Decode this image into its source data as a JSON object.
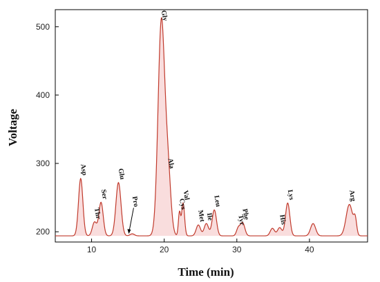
{
  "chart_data": {
    "type": "line",
    "xlabel": "Time (min)",
    "ylabel": "Voltage",
    "xlim": [
      5,
      48
    ],
    "ylim": [
      185,
      525
    ],
    "x_ticks": [
      10,
      20,
      30,
      40
    ],
    "y_ticks": [
      200,
      300,
      400,
      500
    ],
    "grid": false,
    "line_color": "#c0392b",
    "fill_color": "#f5c6c6",
    "baseline": 194,
    "peaks": [
      {
        "name": "Asp",
        "time": 8.5,
        "height": 278,
        "width": 0.3
      },
      {
        "name": "Thr",
        "time": 10.4,
        "height": 214,
        "width": 0.3
      },
      {
        "name": "Ser",
        "time": 11.3,
        "height": 243,
        "width": 0.3
      },
      {
        "name": "Glu",
        "time": 13.7,
        "height": 272,
        "width": 0.35
      },
      {
        "name": "Pro",
        "time": 15.6,
        "height": 197,
        "width": 0.3
      },
      {
        "name": "Gly",
        "time": 19.6,
        "height": 505,
        "width": 0.45
      },
      {
        "name": "Ala",
        "time": 20.5,
        "height": 288,
        "width": 0.4
      },
      {
        "name": "Cys",
        "time": 22.1,
        "height": 228,
        "width": 0.15
      },
      {
        "name": "Val",
        "time": 22.6,
        "height": 242,
        "width": 0.2
      },
      {
        "name": "Met",
        "time": 24.7,
        "height": 210,
        "width": 0.3
      },
      {
        "name": "Ile",
        "time": 25.8,
        "height": 212,
        "width": 0.3
      },
      {
        "name": "Leu",
        "time": 26.9,
        "height": 232,
        "width": 0.3
      },
      {
        "name": "Tyr",
        "time": 30.2,
        "height": 205,
        "width": 0.25
      },
      {
        "name": "Phe",
        "time": 30.8,
        "height": 213,
        "width": 0.3
      },
      {
        "name": "His",
        "time": 35.9,
        "height": 206,
        "width": 0.3
      },
      {
        "name": "Lys",
        "time": 37.0,
        "height": 242,
        "width": 0.3
      },
      {
        "name": "Arg",
        "time": 45.5,
        "height": 240,
        "width": 0.45
      }
    ],
    "extra_peaks": [
      {
        "time": 34.9,
        "height": 205,
        "width": 0.3
      },
      {
        "time": 40.5,
        "height": 212,
        "width": 0.35
      },
      {
        "time": 46.3,
        "height": 215,
        "width": 0.2
      }
    ]
  }
}
